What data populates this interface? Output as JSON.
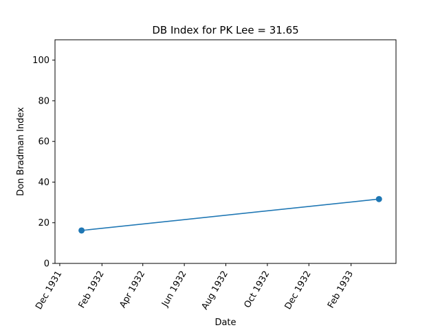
{
  "chart_data": {
    "type": "line",
    "title": "DB Index for PK Lee = 31.65",
    "xlabel": "Date",
    "ylabel": "Don Bradman Index",
    "x_ticks": [
      "Dec 1931",
      "Feb 1932",
      "Apr 1932",
      "Jun 1932",
      "Aug 1932",
      "Oct 1932",
      "Dec 1932",
      "Feb 1933"
    ],
    "y_ticks": [
      "0",
      "20",
      "40",
      "60",
      "80",
      "100"
    ],
    "ylim": [
      0,
      110
    ],
    "xlim": [
      "1931-11-24",
      "1933-04-08"
    ],
    "series": [
      {
        "color": "#1f77b4",
        "points": [
          {
            "x": "1932-01-02",
            "y": 16.2
          },
          {
            "x": "1933-03-14",
            "y": 31.65
          }
        ]
      }
    ],
    "grid": false,
    "legend": "none"
  }
}
